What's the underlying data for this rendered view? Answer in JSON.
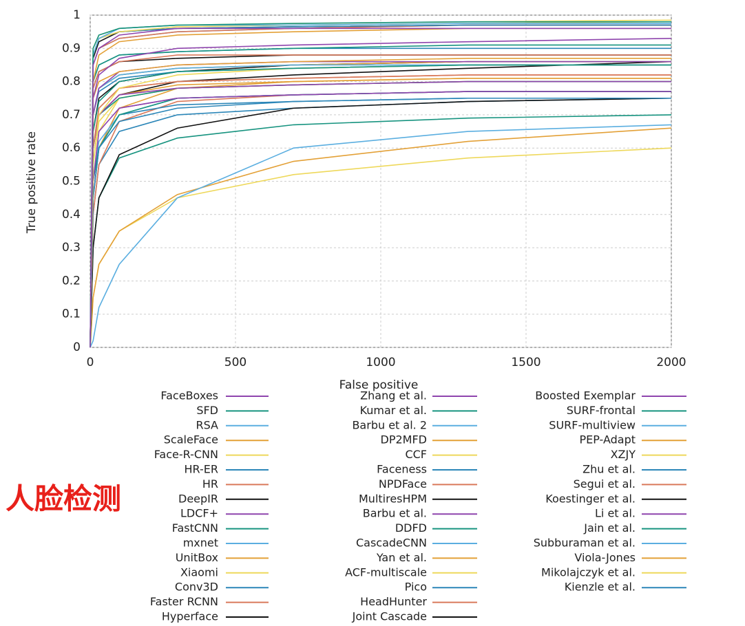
{
  "chart_data": {
    "type": "line",
    "xlabel": "False positive",
    "ylabel": "True positive rate",
    "annotation": "人脸检测",
    "x": [
      0,
      10,
      30,
      100,
      300,
      700,
      1300,
      2000
    ],
    "xlim": [
      0,
      2000
    ],
    "xticks": [
      0,
      500,
      1000,
      1500,
      2000
    ],
    "ylim": [
      0,
      1
    ],
    "yticks": [
      0,
      0.1,
      0.2,
      0.3,
      0.4,
      0.5,
      0.6,
      0.7,
      0.8,
      0.9,
      1
    ],
    "grid": true,
    "series": [
      {
        "name": "FaceBoxes",
        "color": "#8e44ad",
        "values": [
          0,
          0.85,
          0.9,
          0.94,
          0.96,
          0.96,
          0.96,
          0.96
        ]
      },
      {
        "name": "SFD",
        "color": "#16937f",
        "values": [
          0,
          0.9,
          0.94,
          0.96,
          0.97,
          0.975,
          0.98,
          0.98
        ]
      },
      {
        "name": "RSA",
        "color": "#5aaee0",
        "values": [
          0,
          0.88,
          0.93,
          0.96,
          0.97,
          0.97,
          0.975,
          0.975
        ]
      },
      {
        "name": "ScaleFace",
        "color": "#e3a036",
        "values": [
          0,
          0.8,
          0.88,
          0.92,
          0.94,
          0.95,
          0.96,
          0.96
        ]
      },
      {
        "name": "Face-R-CNN",
        "color": "#eed85a",
        "values": [
          0,
          0.88,
          0.93,
          0.95,
          0.965,
          0.97,
          0.975,
          0.98
        ]
      },
      {
        "name": "HR-ER",
        "color": "#2b86b8",
        "values": [
          0,
          0.88,
          0.93,
          0.95,
          0.96,
          0.965,
          0.97,
          0.97
        ]
      },
      {
        "name": "HR",
        "color": "#d9795a",
        "values": [
          0,
          0.85,
          0.9,
          0.93,
          0.95,
          0.96,
          0.97,
          0.97
        ]
      },
      {
        "name": "DeepIR",
        "color": "#111111",
        "values": [
          0,
          0.87,
          0.92,
          0.95,
          0.96,
          0.965,
          0.97,
          0.97
        ]
      },
      {
        "name": "LDCF+",
        "color": "#8e44ad",
        "values": [
          0,
          0.75,
          0.82,
          0.87,
          0.9,
          0.91,
          0.92,
          0.93
        ]
      },
      {
        "name": "FastCNN",
        "color": "#16937f",
        "values": [
          0,
          0.8,
          0.85,
          0.88,
          0.89,
          0.9,
          0.91,
          0.91
        ]
      },
      {
        "name": "mxnet",
        "color": "#5aaee0",
        "values": [
          0,
          0.85,
          0.9,
          0.93,
          0.95,
          0.96,
          0.97,
          0.97
        ]
      },
      {
        "name": "UnitBox",
        "color": "#e3a036",
        "values": [
          0,
          0.75,
          0.8,
          0.83,
          0.85,
          0.86,
          0.87,
          0.87
        ]
      },
      {
        "name": "Xiaomi",
        "color": "#eed85a",
        "values": [
          0,
          0.9,
          0.94,
          0.96,
          0.97,
          0.975,
          0.98,
          0.985
        ]
      },
      {
        "name": "Conv3D",
        "color": "#2b86b8",
        "values": [
          0,
          0.8,
          0.85,
          0.88,
          0.89,
          0.9,
          0.9,
          0.9
        ]
      },
      {
        "name": "Faster RCNN",
        "color": "#d9795a",
        "values": [
          0,
          0.78,
          0.83,
          0.86,
          0.88,
          0.88,
          0.88,
          0.88
        ]
      },
      {
        "name": "Hyperface",
        "color": "#111111",
        "values": [
          0,
          0.78,
          0.83,
          0.86,
          0.87,
          0.88,
          0.88,
          0.88
        ]
      },
      {
        "name": "Zhang et al.",
        "color": "#8e44ad",
        "values": [
          0,
          0.7,
          0.78,
          0.83,
          0.85,
          0.86,
          0.86,
          0.86
        ]
      },
      {
        "name": "Kumar et al.",
        "color": "#16937f",
        "values": [
          0,
          0.65,
          0.74,
          0.8,
          0.83,
          0.84,
          0.85,
          0.85
        ]
      },
      {
        "name": "Barbu et al. 2",
        "color": "#5aaee0",
        "values": [
          0,
          0.7,
          0.78,
          0.82,
          0.84,
          0.85,
          0.85,
          0.85
        ]
      },
      {
        "name": "DP2MFD",
        "color": "#e3a036",
        "values": [
          0,
          0.7,
          0.78,
          0.82,
          0.84,
          0.85,
          0.86,
          0.86
        ]
      },
      {
        "name": "CCF",
        "color": "#eed85a",
        "values": [
          0,
          0.55,
          0.7,
          0.78,
          0.82,
          0.84,
          0.85,
          0.85
        ]
      },
      {
        "name": "Faceness",
        "color": "#2b86b8",
        "values": [
          0,
          0.7,
          0.77,
          0.81,
          0.83,
          0.84,
          0.85,
          0.85
        ]
      },
      {
        "name": "NPDFace",
        "color": "#d9795a",
        "values": [
          0,
          0.6,
          0.72,
          0.78,
          0.8,
          0.81,
          0.82,
          0.82
        ]
      },
      {
        "name": "MultiresHPM",
        "color": "#111111",
        "values": [
          0,
          0.65,
          0.75,
          0.8,
          0.83,
          0.85,
          0.86,
          0.86
        ]
      },
      {
        "name": "Barbu et al.",
        "color": "#8e44ad",
        "values": [
          0,
          0.6,
          0.7,
          0.76,
          0.78,
          0.79,
          0.8,
          0.8
        ]
      },
      {
        "name": "DDFD",
        "color": "#16937f",
        "values": [
          0,
          0.6,
          0.7,
          0.75,
          0.78,
          0.79,
          0.8,
          0.8
        ]
      },
      {
        "name": "CascadeCNN",
        "color": "#5aaee0",
        "values": [
          0,
          0.7,
          0.78,
          0.82,
          0.84,
          0.85,
          0.86,
          0.86
        ]
      },
      {
        "name": "Yan et al.",
        "color": "#e3a036",
        "values": [
          0,
          0.6,
          0.7,
          0.76,
          0.79,
          0.8,
          0.81,
          0.81
        ]
      },
      {
        "name": "ACF-multiscale",
        "color": "#eed85a",
        "values": [
          0,
          0.55,
          0.68,
          0.75,
          0.78,
          0.79,
          0.8,
          0.8
        ]
      },
      {
        "name": "Pico",
        "color": "#2b86b8",
        "values": [
          0,
          0.45,
          0.6,
          0.68,
          0.72,
          0.74,
          0.75,
          0.75
        ]
      },
      {
        "name": "HeadHunter",
        "color": "#d9795a",
        "values": [
          0,
          0.6,
          0.72,
          0.78,
          0.8,
          0.81,
          0.82,
          0.82
        ]
      },
      {
        "name": "Joint Cascade",
        "color": "#111111",
        "values": [
          0,
          0.6,
          0.7,
          0.76,
          0.8,
          0.82,
          0.84,
          0.86
        ]
      },
      {
        "name": "Boosted Exemplar",
        "color": "#8e44ad",
        "values": [
          0,
          0.5,
          0.65,
          0.72,
          0.75,
          0.76,
          0.77,
          0.77
        ]
      },
      {
        "name": "SURF-frontal",
        "color": "#16937f",
        "values": [
          0,
          0.5,
          0.6,
          0.7,
          0.75,
          0.76,
          0.77,
          0.77
        ]
      },
      {
        "name": "SURF-multiview",
        "color": "#5aaee0",
        "values": [
          0,
          0.5,
          0.62,
          0.7,
          0.75,
          0.76,
          0.77,
          0.77
        ]
      },
      {
        "name": "PEP-Adapt",
        "color": "#e3a036",
        "values": [
          0,
          0.45,
          0.6,
          0.72,
          0.78,
          0.8,
          0.81,
          0.81
        ]
      },
      {
        "name": "XZJY",
        "color": "#eed85a",
        "values": [
          0,
          0.5,
          0.65,
          0.75,
          0.78,
          0.79,
          0.8,
          0.8
        ]
      },
      {
        "name": "Zhu et al.",
        "color": "#2b86b8",
        "values": [
          0,
          0.45,
          0.6,
          0.7,
          0.73,
          0.74,
          0.75,
          0.75
        ]
      },
      {
        "name": "Segui et al.",
        "color": "#d9795a",
        "values": [
          0,
          0.4,
          0.55,
          0.68,
          0.74,
          0.76,
          0.77,
          0.77
        ]
      },
      {
        "name": "Koestinger et al.",
        "color": "#111111",
        "values": [
          0,
          0.3,
          0.45,
          0.58,
          0.66,
          0.72,
          0.74,
          0.75
        ]
      },
      {
        "name": "Li et al.",
        "color": "#8e44ad",
        "values": [
          0,
          0.45,
          0.6,
          0.72,
          0.75,
          0.76,
          0.77,
          0.77
        ]
      },
      {
        "name": "Jain et al.",
        "color": "#16937f",
        "values": [
          0,
          0.3,
          0.45,
          0.57,
          0.63,
          0.67,
          0.69,
          0.7
        ]
      },
      {
        "name": "Subburaman et al.",
        "color": "#5aaee0",
        "values": [
          0,
          0.02,
          0.12,
          0.25,
          0.45,
          0.6,
          0.65,
          0.67
        ]
      },
      {
        "name": "Viola-Jones",
        "color": "#e3a036",
        "values": [
          0,
          0.15,
          0.25,
          0.35,
          0.46,
          0.56,
          0.62,
          0.66
        ]
      },
      {
        "name": "Mikolajczyk et al.",
        "color": "#eed85a",
        "values": [
          0,
          0.15,
          0.25,
          0.35,
          0.45,
          0.52,
          0.57,
          0.6
        ]
      },
      {
        "name": "Kienzle et al.",
        "color": "#2b86b8",
        "values": [
          0,
          0.4,
          0.55,
          0.65,
          0.7,
          0.72,
          0.74,
          0.75
        ]
      }
    ]
  }
}
